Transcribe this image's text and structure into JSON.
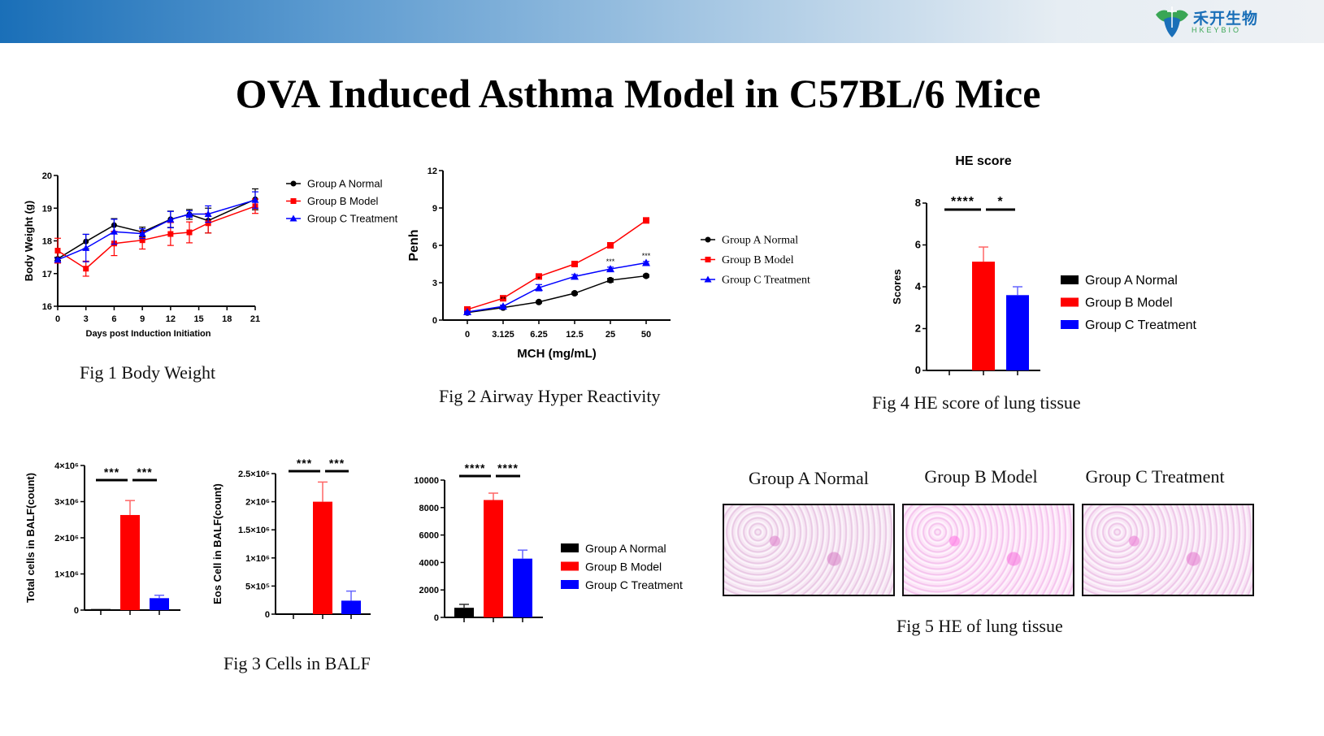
{
  "header": {
    "logo_cn": "禾开生物",
    "logo_en": "HKEYBIO"
  },
  "title": "OVA Induced Asthma Model in C57BL/6 Mice",
  "colors": {
    "group_a": "#000000",
    "group_b": "#ff0000",
    "group_c": "#0000ff"
  },
  "captions": {
    "fig1": "Fig 1 Body Weight",
    "fig2": "Fig 2 Airway Hyper Reactivity",
    "fig3": "Fig 3 Cells in BALF",
    "fig4": "Fig 4 HE score of lung tissue",
    "fig5": "Fig 5 HE of lung tissue"
  },
  "fig5": {
    "panels": [
      "Group A Normal",
      "Group B Model",
      "Group C Treatment"
    ]
  },
  "chart_data": [
    {
      "id": "fig1",
      "type": "line",
      "title": "",
      "xlabel": "Days post Induction Initiation",
      "ylabel": "Body Weight (g)",
      "xlim": [
        0,
        21
      ],
      "ylim": [
        16,
        20
      ],
      "xticks": [
        "0",
        "3",
        "6",
        "9",
        "12",
        "15",
        "18",
        "21"
      ],
      "yticks": [
        "16",
        "17",
        "18",
        "19",
        "20"
      ],
      "x": [
        0,
        3,
        6,
        9,
        12,
        14,
        16,
        21
      ],
      "legend": "top-right",
      "series": [
        {
          "name": "Group A Normal",
          "marker": "circle",
          "values": [
            17.45,
            17.98,
            18.48,
            18.27,
            18.66,
            18.81,
            18.62,
            19.27
          ],
          "errors": [
            0.05,
            0.22,
            0.2,
            0.15,
            0.25,
            0.15,
            0.38,
            0.32
          ]
        },
        {
          "name": "Group B Model",
          "marker": "square",
          "values": [
            17.7,
            17.15,
            17.92,
            18.02,
            18.21,
            18.26,
            18.54,
            19.06
          ],
          "errors": [
            0.38,
            0.23,
            0.37,
            0.27,
            0.35,
            0.32,
            0.3,
            0.22
          ]
        },
        {
          "name": "Group C Treatment",
          "marker": "triangle",
          "values": [
            17.42,
            17.78,
            18.28,
            18.22,
            18.65,
            18.82,
            18.82,
            19.25
          ],
          "errors": [
            0.05,
            0.42,
            0.38,
            0.15,
            0.25,
            0.1,
            0.25,
            0.25
          ]
        }
      ]
    },
    {
      "id": "fig2",
      "type": "line",
      "title": "",
      "xlabel": "MCH (mg/mL)",
      "ylabel": "Penh",
      "ylim": [
        0,
        12
      ],
      "yticks": [
        "0",
        "3",
        "6",
        "9",
        "12"
      ],
      "categories": [
        "0",
        "3.125",
        "6.25",
        "12.5",
        "25",
        "50"
      ],
      "legend": "right",
      "annotations": [
        {
          "category": "3.125",
          "text": "**"
        },
        {
          "category": "6.25",
          "text": "*"
        },
        {
          "category": "25",
          "text": "***"
        },
        {
          "category": "50",
          "text": "***"
        }
      ],
      "series": [
        {
          "name": "Group A Normal",
          "marker": "circle",
          "values": [
            0.6,
            1.0,
            1.45,
            2.15,
            3.2,
            3.55
          ],
          "errors": [
            0.05,
            0.05,
            0.08,
            0.1,
            0.15,
            0.1
          ]
        },
        {
          "name": "Group B Model",
          "marker": "square",
          "values": [
            0.85,
            1.75,
            3.5,
            4.5,
            6.0,
            8.0
          ],
          "errors": [
            0.05,
            0.1,
            0.2,
            0.1,
            0.1,
            0.2
          ]
        },
        {
          "name": "Group C Treatment",
          "marker": "triangle",
          "values": [
            0.65,
            1.1,
            2.6,
            3.5,
            4.1,
            4.6
          ],
          "errors": [
            0.05,
            0.1,
            0.25,
            0.15,
            0.15,
            0.1
          ]
        }
      ]
    },
    {
      "id": "fig3a",
      "type": "bar",
      "title": "",
      "ylabel": "Total cells in BALF(count)",
      "ylim": [
        0,
        4000000
      ],
      "yticks": [
        "0",
        "1×10⁶",
        "2×10⁶",
        "3×10⁶",
        "4×10⁶"
      ],
      "categories": [
        "Group A Normal",
        "Group B Model",
        "Group C Treatment"
      ],
      "values": [
        30000,
        2630000,
        330000
      ],
      "errors": [
        0,
        400000,
        80000
      ],
      "significance": [
        "***",
        "***"
      ]
    },
    {
      "id": "fig3b",
      "type": "bar",
      "title": "",
      "ylabel": "Eos Cell in BALF(count)",
      "ylim": [
        0,
        2500000
      ],
      "yticks": [
        "0",
        "5×10⁵",
        "1×10⁶",
        "1.5×10⁶",
        "2×10⁶",
        "2.5×10⁶"
      ],
      "categories": [
        "Group A Normal",
        "Group B Model",
        "Group C Treatment"
      ],
      "values": [
        0,
        2000000,
        240000
      ],
      "errors": [
        0,
        350000,
        170000
      ],
      "significance": [
        "***",
        "***"
      ]
    },
    {
      "id": "fig3c",
      "type": "bar",
      "title": "",
      "ylabel": "",
      "ylim": [
        0,
        10000
      ],
      "yticks": [
        "0",
        "2000",
        "4000",
        "6000",
        "8000",
        "10000"
      ],
      "categories": [
        "Group A Normal",
        "Group B Model",
        "Group C Treatment"
      ],
      "values": [
        700,
        8550,
        4280
      ],
      "errors": [
        250,
        500,
        620
      ],
      "significance": [
        "****",
        "****"
      ],
      "legend": "right"
    },
    {
      "id": "fig4",
      "type": "bar",
      "title": "HE score",
      "ylabel": "Scores",
      "ylim": [
        0,
        8
      ],
      "yticks": [
        "0",
        "2",
        "4",
        "6",
        "8"
      ],
      "categories": [
        "Group A Normal",
        "Group B Model",
        "Group C Treatment"
      ],
      "values": [
        0,
        5.2,
        3.6
      ],
      "errors": [
        0,
        0.7,
        0.4
      ],
      "significance": [
        "****",
        "*"
      ],
      "legend": "right"
    }
  ]
}
